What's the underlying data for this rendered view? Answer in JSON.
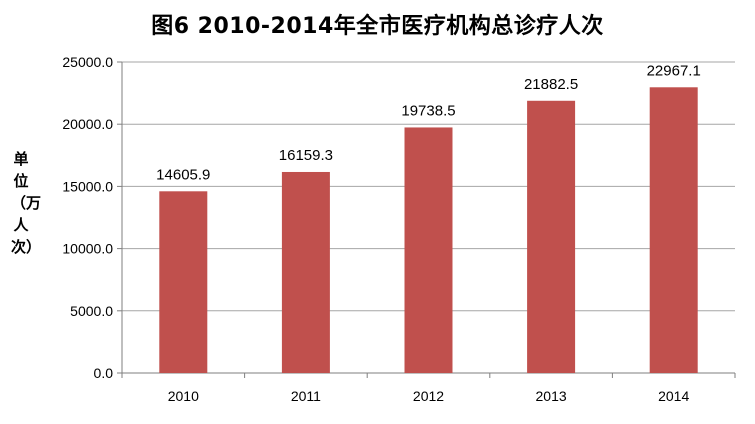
{
  "chart_data": {
    "type": "bar",
    "title": "图6   2010-2014年全市医疗机构总诊疗人次",
    "ylabel": "单位（万人次）",
    "xlabel": "",
    "categories": [
      "2010",
      "2011",
      "2012",
      "2013",
      "2014"
    ],
    "values": [
      14605.9,
      16159.3,
      19738.5,
      21882.5,
      22967.1
    ],
    "value_labels": [
      "14605.9",
      "16159.3",
      "19738.5",
      "21882.5",
      "22967.1"
    ],
    "ylim": [
      0,
      25000
    ],
    "yticks": [
      0,
      5000,
      10000,
      15000,
      20000,
      25000
    ],
    "ytick_labels": [
      "0.0",
      "5000.0",
      "10000.0",
      "15000.0",
      "20000.0",
      "25000.0"
    ],
    "grid": true,
    "bar_color": "#c0504d",
    "grid_color": "#a6a6a6"
  }
}
